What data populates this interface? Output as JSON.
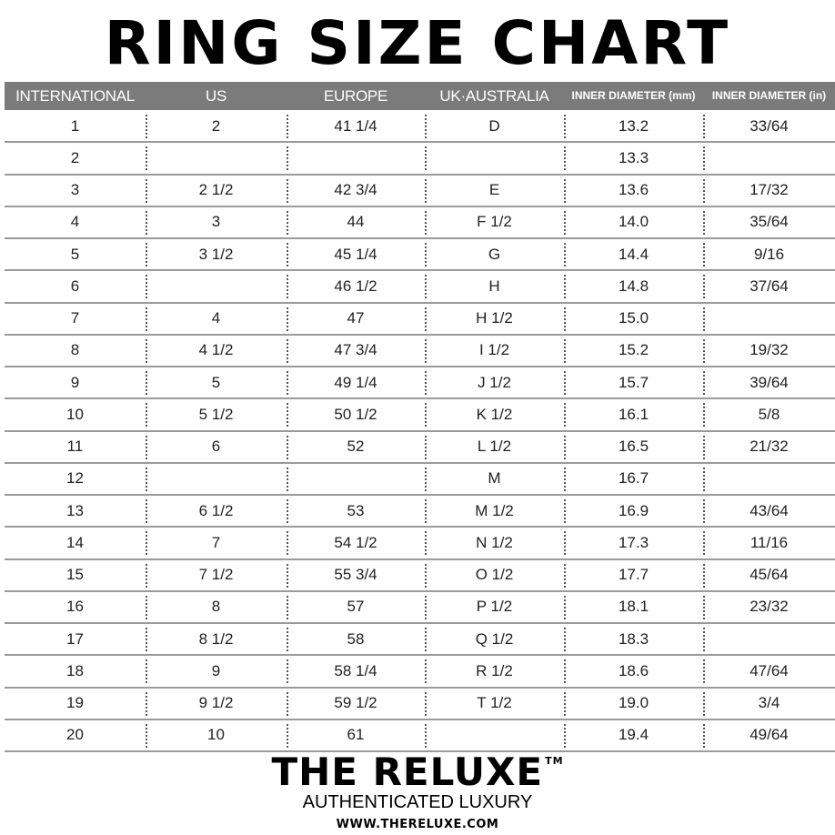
{
  "title": "RING SIZE CHART",
  "columns": [
    "INTERNATIONAL",
    "US",
    "EUROPE",
    "UK·AUSTRALIA",
    "INNER DIAMETER (mm)",
    "INNER DIAMETER (in)"
  ],
  "rows": [
    [
      "1",
      "2",
      "41 1/4",
      "D",
      "13.2",
      "33/64"
    ],
    [
      "2",
      "",
      "",
      "",
      "13.3",
      ""
    ],
    [
      "3",
      "2 1/2",
      "42 3/4",
      "E",
      "13.6",
      "17/32"
    ],
    [
      "4",
      "3",
      "44",
      "F 1/2",
      "14.0",
      "35/64"
    ],
    [
      "5",
      "3 1/2",
      "45 1/4",
      "G",
      "14.4",
      "9/16"
    ],
    [
      "6",
      "",
      "46 1/2",
      "H",
      "14.8",
      "37/64"
    ],
    [
      "7",
      "4",
      "47",
      "H 1/2",
      "15.0",
      ""
    ],
    [
      "8",
      "4 1/2",
      "47 3/4",
      "I 1/2",
      "15.2",
      "19/32"
    ],
    [
      "9",
      "5",
      "49 1/4",
      "J 1/2",
      "15.7",
      "39/64"
    ],
    [
      "10",
      "5 1/2",
      "50 1/2",
      "K 1/2",
      "16.1",
      "5/8"
    ],
    [
      "11",
      "6",
      "52",
      "L 1/2",
      "16.5",
      "21/32"
    ],
    [
      "12",
      "",
      "",
      "M",
      "16.7",
      ""
    ],
    [
      "13",
      "6 1/2",
      "53",
      "M 1/2",
      "16.9",
      "43/64"
    ],
    [
      "14",
      "7",
      "54 1/2",
      "N 1/2",
      "17.3",
      "11/16"
    ],
    [
      "15",
      "7 1/2",
      "55 3/4",
      "O 1/2",
      "17.7",
      "45/64"
    ],
    [
      "16",
      "8",
      "57",
      "P 1/2",
      "18.1",
      "23/32"
    ],
    [
      "17",
      "8 1/2",
      "58",
      "Q 1/2",
      "18.3",
      ""
    ],
    [
      "18",
      "9",
      "58 1/4",
      "R 1/2",
      "18.6",
      "47/64"
    ],
    [
      "19",
      "9 1/2",
      "59 1/2",
      "T 1/2",
      "19.0",
      "3/4"
    ],
    [
      "20",
      "10",
      "61",
      "",
      "19.4",
      "49/64"
    ]
  ],
  "footer": {
    "brand": "THE RELUXE",
    "trademark": "TM",
    "tagline": "AUTHENTICATED LUXURY",
    "url": "WWW.THERELUXE.COM"
  },
  "colors": {
    "header_bg": "#7b7b7b",
    "header_text": "#ffffff"
  }
}
